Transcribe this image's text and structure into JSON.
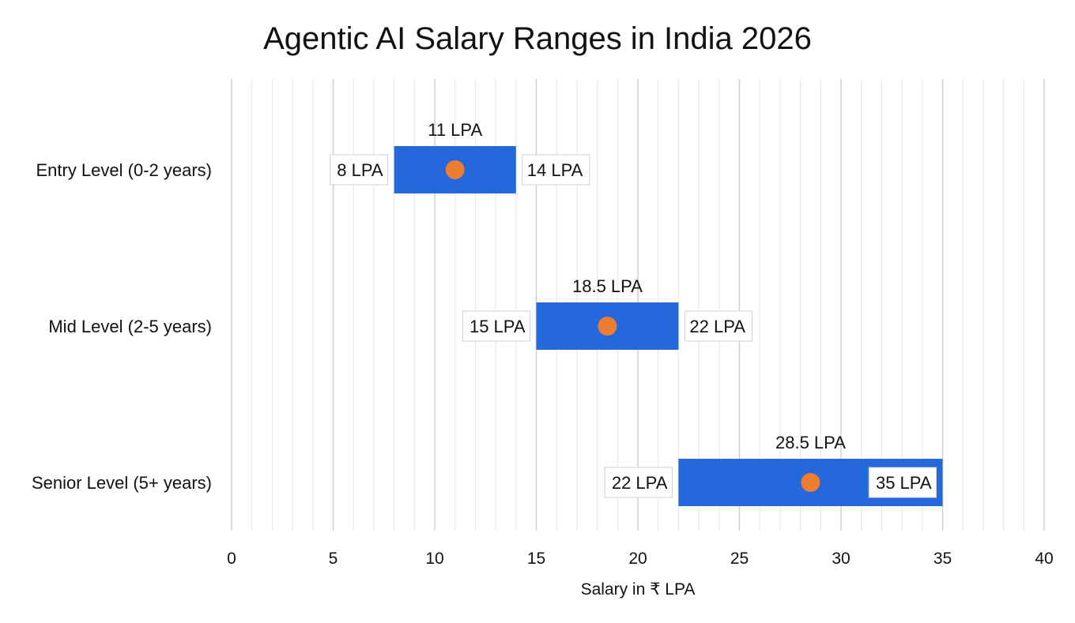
{
  "chart_data": {
    "type": "range-bar",
    "title": "Agentic AI Salary Ranges in India 2026",
    "xlabel": "Salary in ₹ LPA",
    "ylabel": "",
    "xlim": [
      0,
      40
    ],
    "xticks": [
      0,
      5,
      10,
      15,
      20,
      25,
      30,
      35,
      40
    ],
    "grid": true,
    "categories": [
      "Entry Level (0-2 years)",
      "Mid Level (2-5 years)",
      "Senior Level (5+ years)"
    ],
    "min": [
      8,
      15,
      22
    ],
    "max": [
      14,
      22,
      35
    ],
    "mid": [
      11,
      18.5,
      28.5
    ],
    "min_labels": [
      "8 LPA",
      "15 LPA",
      "22 LPA"
    ],
    "max_labels": [
      "14 LPA",
      "22 LPA",
      "35 LPA"
    ],
    "mid_labels": [
      "11 LPA",
      "18.5 LPA",
      "28.5 LPA"
    ],
    "colors": {
      "bar": "#2468DC",
      "midpoint": "#ED7D31"
    }
  }
}
